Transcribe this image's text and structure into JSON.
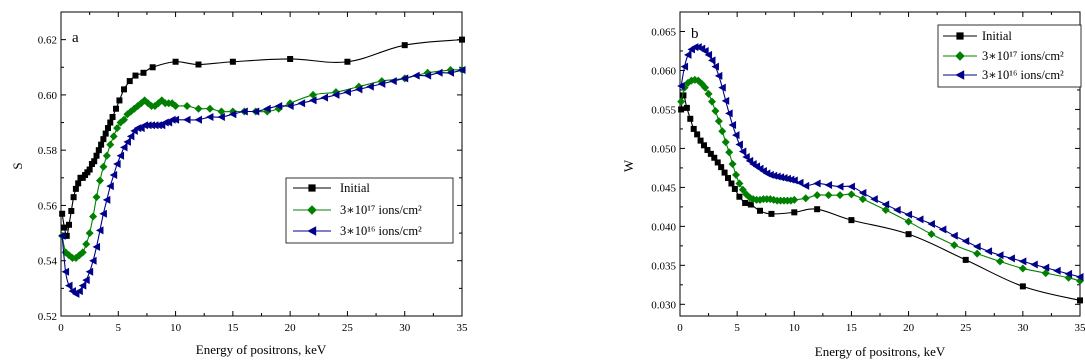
{
  "chart_data": [
    {
      "type": "line",
      "panel_label": "a",
      "xlabel": "Energy of positrons, keV",
      "ylabel": "S",
      "xlim": [
        0,
        35
      ],
      "ylim": [
        0.52,
        0.63
      ],
      "xticks": [
        0,
        5,
        10,
        15,
        20,
        25,
        30,
        35
      ],
      "yticks": [
        0.52,
        0.54,
        0.56,
        0.58,
        0.6,
        0.62
      ],
      "ytick_labels": [
        "0.52",
        "0.54",
        "0.56",
        "0.58",
        "0.60",
        "0.62"
      ],
      "legend": {
        "position": "center-right"
      },
      "series": [
        {
          "name": "Initial",
          "color": "#000000",
          "marker": "square",
          "x": [
            0.1,
            0.3,
            0.5,
            0.7,
            0.9,
            1.1,
            1.3,
            1.5,
            1.7,
            1.9,
            2.1,
            2.3,
            2.5,
            2.7,
            2.9,
            3.1,
            3.3,
            3.5,
            3.7,
            3.9,
            4.1,
            4.3,
            4.5,
            4.8,
            5.1,
            5.5,
            6.0,
            6.5,
            7.2,
            8.0,
            10.0,
            12.0,
            15.0,
            20.0,
            25.0,
            30.0,
            35.0
          ],
          "y": [
            0.557,
            0.552,
            0.549,
            0.553,
            0.558,
            0.563,
            0.566,
            0.568,
            0.57,
            0.57,
            0.571,
            0.572,
            0.573,
            0.575,
            0.576,
            0.578,
            0.58,
            0.582,
            0.584,
            0.586,
            0.588,
            0.59,
            0.592,
            0.595,
            0.598,
            0.602,
            0.605,
            0.607,
            0.608,
            0.61,
            0.612,
            0.611,
            0.612,
            0.613,
            0.612,
            0.618,
            0.62
          ]
        },
        {
          "name": "3∗10¹⁷ ions/cm²",
          "color": "#008000",
          "marker": "diamond",
          "x": [
            0.1,
            0.4,
            0.7,
            1.0,
            1.3,
            1.6,
            1.9,
            2.2,
            2.5,
            2.8,
            3.1,
            3.4,
            3.7,
            4.0,
            4.3,
            4.6,
            4.9,
            5.2,
            5.5,
            5.8,
            6.1,
            6.4,
            6.7,
            7.0,
            7.3,
            7.6,
            7.9,
            8.2,
            8.5,
            8.8,
            9.1,
            9.4,
            9.7,
            10.0,
            11.0,
            12.0,
            13.0,
            14.0,
            15.0,
            16.0,
            17.0,
            18.0,
            19.0,
            20.0,
            22.0,
            24.0,
            26.0,
            28.0,
            30.0,
            32.0,
            34.0,
            35.0
          ],
          "y": [
            0.549,
            0.543,
            0.542,
            0.541,
            0.541,
            0.542,
            0.543,
            0.546,
            0.55,
            0.556,
            0.563,
            0.569,
            0.574,
            0.578,
            0.582,
            0.585,
            0.588,
            0.59,
            0.591,
            0.593,
            0.594,
            0.595,
            0.596,
            0.597,
            0.598,
            0.597,
            0.596,
            0.596,
            0.597,
            0.598,
            0.597,
            0.597,
            0.597,
            0.596,
            0.596,
            0.595,
            0.595,
            0.594,
            0.594,
            0.594,
            0.594,
            0.594,
            0.595,
            0.597,
            0.6,
            0.601,
            0.603,
            0.605,
            0.606,
            0.608,
            0.609,
            0.609
          ]
        },
        {
          "name": "3∗10¹⁶ ions/cm²",
          "color": "#00008b",
          "marker": "triangle-left",
          "x": [
            0.1,
            0.4,
            0.7,
            1.0,
            1.3,
            1.6,
            1.9,
            2.2,
            2.5,
            2.8,
            3.1,
            3.4,
            3.7,
            4.0,
            4.3,
            4.6,
            4.9,
            5.2,
            5.5,
            5.8,
            6.1,
            6.4,
            6.7,
            7.0,
            7.3,
            7.6,
            7.9,
            8.2,
            8.5,
            8.8,
            9.1,
            9.4,
            9.7,
            10.0,
            11.0,
            12.0,
            13.0,
            14.0,
            15.0,
            16.0,
            17.0,
            18.0,
            19.0,
            20.0,
            21.0,
            22.0,
            23.0,
            24.0,
            25.0,
            26.0,
            27.0,
            28.0,
            29.0,
            30.0,
            31.0,
            32.0,
            33.0,
            34.0,
            35.0
          ],
          "y": [
            0.549,
            0.536,
            0.531,
            0.529,
            0.528,
            0.529,
            0.531,
            0.533,
            0.536,
            0.54,
            0.545,
            0.551,
            0.557,
            0.562,
            0.567,
            0.571,
            0.575,
            0.578,
            0.581,
            0.583,
            0.585,
            0.587,
            0.588,
            0.588,
            0.589,
            0.589,
            0.589,
            0.589,
            0.589,
            0.589,
            0.59,
            0.59,
            0.591,
            0.591,
            0.591,
            0.591,
            0.592,
            0.592,
            0.593,
            0.594,
            0.594,
            0.595,
            0.596,
            0.596,
            0.597,
            0.598,
            0.599,
            0.6,
            0.601,
            0.602,
            0.603,
            0.604,
            0.605,
            0.606,
            0.607,
            0.607,
            0.608,
            0.608,
            0.609
          ]
        }
      ]
    },
    {
      "type": "line",
      "panel_label": "b",
      "xlabel": "Energy of positrons, keV",
      "ylabel": "W",
      "xlim": [
        0,
        35
      ],
      "ylim": [
        0.0285,
        0.0675
      ],
      "xticks": [
        0,
        5,
        10,
        15,
        20,
        25,
        30,
        35
      ],
      "yticks": [
        0.03,
        0.035,
        0.04,
        0.045,
        0.05,
        0.055,
        0.06,
        0.065
      ],
      "ytick_labels": [
        "0.030",
        "0.035",
        "0.040",
        "0.045",
        "0.050",
        "0.055",
        "0.060",
        "0.065"
      ],
      "legend": {
        "position": "top-right"
      },
      "series": [
        {
          "name": "Initial",
          "color": "#000000",
          "marker": "square",
          "x": [
            0.1,
            0.3,
            0.6,
            0.9,
            1.2,
            1.5,
            1.8,
            2.1,
            2.4,
            2.7,
            3.0,
            3.3,
            3.6,
            3.9,
            4.2,
            4.5,
            4.8,
            5.2,
            5.7,
            6.2,
            7.0,
            8.0,
            10.0,
            12.0,
            15.0,
            20.0,
            25.0,
            30.0,
            35.0
          ],
          "y": [
            0.055,
            0.0568,
            0.0552,
            0.0538,
            0.0525,
            0.0518,
            0.051,
            0.0504,
            0.0498,
            0.0493,
            0.0488,
            0.0482,
            0.0476,
            0.0469,
            0.0462,
            0.0455,
            0.0448,
            0.0438,
            0.043,
            0.0428,
            0.042,
            0.0416,
            0.0418,
            0.0422,
            0.0408,
            0.039,
            0.0357,
            0.0323,
            0.0305
          ]
        },
        {
          "name": "3∗10¹⁷ ions/cm²",
          "color": "#008000",
          "marker": "diamond",
          "x": [
            0.1,
            0.4,
            0.7,
            1.0,
            1.3,
            1.6,
            1.9,
            2.2,
            2.5,
            2.8,
            3.1,
            3.4,
            3.7,
            4.0,
            4.3,
            4.6,
            4.9,
            5.2,
            5.5,
            5.8,
            6.1,
            6.4,
            6.7,
            7.0,
            7.3,
            7.6,
            7.9,
            8.2,
            8.5,
            8.8,
            9.1,
            9.4,
            9.7,
            10.0,
            11.0,
            12.0,
            13.0,
            14.0,
            15.0,
            16.0,
            18.0,
            20.0,
            22.0,
            24.0,
            26.0,
            28.0,
            30.0,
            32.0,
            34.0,
            35.0
          ],
          "y": [
            0.056,
            0.0578,
            0.0584,
            0.0587,
            0.0588,
            0.0587,
            0.0583,
            0.0578,
            0.057,
            0.056,
            0.0548,
            0.0535,
            0.0522,
            0.0508,
            0.0495,
            0.048,
            0.0466,
            0.0455,
            0.0447,
            0.0441,
            0.0437,
            0.0435,
            0.0434,
            0.0434,
            0.0435,
            0.0435,
            0.0435,
            0.0434,
            0.0433,
            0.0433,
            0.0433,
            0.0433,
            0.0433,
            0.0434,
            0.0436,
            0.044,
            0.044,
            0.044,
            0.0441,
            0.0435,
            0.0421,
            0.0406,
            0.039,
            0.0376,
            0.0365,
            0.0355,
            0.0346,
            0.034,
            0.0334,
            0.033
          ]
        },
        {
          "name": "3∗10¹⁶ ions/cm²",
          "color": "#00008b",
          "marker": "triangle-left",
          "x": [
            0.1,
            0.4,
            0.7,
            1.0,
            1.3,
            1.6,
            1.9,
            2.2,
            2.5,
            2.8,
            3.1,
            3.4,
            3.7,
            4.0,
            4.3,
            4.6,
            4.9,
            5.2,
            5.5,
            5.8,
            6.1,
            6.4,
            6.7,
            7.0,
            7.3,
            7.6,
            7.9,
            8.2,
            8.5,
            8.8,
            9.1,
            9.4,
            9.7,
            10.0,
            10.5,
            11.0,
            12.0,
            13.0,
            14.0,
            15.0,
            16.0,
            17.0,
            18.0,
            19.0,
            20.0,
            21.0,
            22.0,
            23.0,
            24.0,
            25.0,
            26.0,
            27.0,
            28.0,
            29.0,
            30.0,
            31.0,
            32.0,
            33.0,
            34.0,
            35.0
          ],
          "y": [
            0.058,
            0.0605,
            0.062,
            0.0627,
            0.063,
            0.063,
            0.0628,
            0.0625,
            0.062,
            0.0613,
            0.0605,
            0.0593,
            0.0578,
            0.0561,
            0.0545,
            0.053,
            0.0517,
            0.0505,
            0.0496,
            0.0489,
            0.0484,
            0.048,
            0.0477,
            0.0474,
            0.0471,
            0.0468,
            0.0466,
            0.0465,
            0.0464,
            0.0463,
            0.0462,
            0.0461,
            0.046,
            0.0459,
            0.0456,
            0.0452,
            0.0455,
            0.0453,
            0.0451,
            0.0451,
            0.0443,
            0.0435,
            0.0428,
            0.0421,
            0.0415,
            0.0409,
            0.0403,
            0.0396,
            0.0388,
            0.0381,
            0.0374,
            0.0368,
            0.0363,
            0.0359,
            0.0355,
            0.0351,
            0.0347,
            0.0343,
            0.0339,
            0.0335
          ]
        }
      ]
    }
  ]
}
